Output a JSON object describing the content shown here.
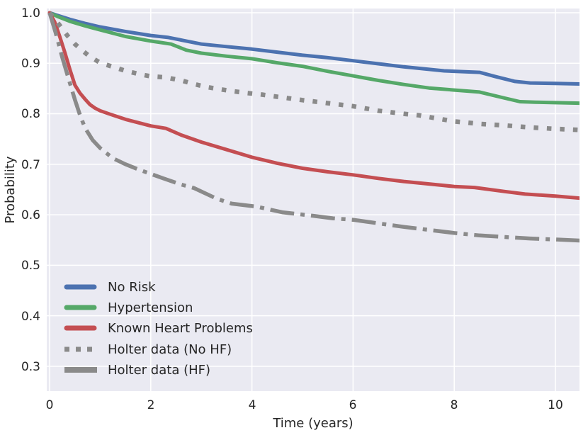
{
  "chart_data": {
    "type": "line",
    "xlabel": "Time (years)",
    "ylabel": "Probability",
    "xlim": [
      0,
      10.5
    ],
    "ylim": [
      0.25,
      1.01
    ],
    "xticks": [
      0,
      2,
      4,
      6,
      8,
      10
    ],
    "yticks": [
      1.0,
      0.9,
      0.8,
      0.7,
      0.6,
      0.5,
      0.4,
      0.3
    ],
    "xtick_labels": [
      "0",
      "2",
      "4",
      "6",
      "8",
      "10"
    ],
    "ytick_labels": [
      "1.0",
      "0.9",
      "0.8",
      "0.7",
      "0.6",
      "0.5",
      "0.4",
      "0.3"
    ],
    "grid": true,
    "plot_background": "#eaeaf2",
    "grid_color": "#ffffff",
    "legend_position": "lower left",
    "series": [
      {
        "name": "No Risk",
        "color": "#4c72b0",
        "line_style": "solid",
        "points": [
          [
            0,
            1.0
          ],
          [
            0.15,
            0.995
          ],
          [
            0.4,
            0.987
          ],
          [
            0.7,
            0.979
          ],
          [
            1.0,
            0.972
          ],
          [
            1.5,
            0.963
          ],
          [
            2.0,
            0.955
          ],
          [
            2.35,
            0.951
          ],
          [
            2.7,
            0.944
          ],
          [
            3.0,
            0.938
          ],
          [
            3.5,
            0.933
          ],
          [
            4.0,
            0.928
          ],
          [
            4.5,
            0.922
          ],
          [
            5.0,
            0.916
          ],
          [
            5.5,
            0.911
          ],
          [
            6.0,
            0.905
          ],
          [
            6.5,
            0.899
          ],
          [
            7.0,
            0.893
          ],
          [
            7.4,
            0.889
          ],
          [
            7.8,
            0.885
          ],
          [
            8.5,
            0.882
          ],
          [
            8.8,
            0.874
          ],
          [
            9.2,
            0.864
          ],
          [
            9.5,
            0.861
          ],
          [
            10.0,
            0.86
          ],
          [
            10.48,
            0.859
          ]
        ]
      },
      {
        "name": "Hypertension",
        "color": "#55a868",
        "line_style": "solid",
        "points": [
          [
            0,
            1.0
          ],
          [
            0.15,
            0.993
          ],
          [
            0.4,
            0.983
          ],
          [
            0.7,
            0.974
          ],
          [
            1.0,
            0.966
          ],
          [
            1.5,
            0.953
          ],
          [
            2.0,
            0.944
          ],
          [
            2.4,
            0.938
          ],
          [
            2.7,
            0.926
          ],
          [
            3.0,
            0.92
          ],
          [
            3.5,
            0.914
          ],
          [
            4.0,
            0.909
          ],
          [
            4.5,
            0.901
          ],
          [
            5.0,
            0.894
          ],
          [
            5.5,
            0.884
          ],
          [
            6.0,
            0.875
          ],
          [
            6.5,
            0.866
          ],
          [
            7.0,
            0.858
          ],
          [
            7.5,
            0.851
          ],
          [
            8.0,
            0.847
          ],
          [
            8.5,
            0.843
          ],
          [
            9.0,
            0.831
          ],
          [
            9.3,
            0.824
          ],
          [
            9.6,
            0.823
          ],
          [
            10.0,
            0.822
          ],
          [
            10.48,
            0.821
          ]
        ]
      },
      {
        "name": "Known Heart Problems",
        "color": "#c44e52",
        "line_style": "solid",
        "points": [
          [
            0,
            1.0
          ],
          [
            0.1,
            0.982
          ],
          [
            0.2,
            0.953
          ],
          [
            0.3,
            0.922
          ],
          [
            0.4,
            0.888
          ],
          [
            0.5,
            0.857
          ],
          [
            0.6,
            0.841
          ],
          [
            0.7,
            0.829
          ],
          [
            0.8,
            0.818
          ],
          [
            0.9,
            0.811
          ],
          [
            1.0,
            0.806
          ],
          [
            1.2,
            0.799
          ],
          [
            1.5,
            0.789
          ],
          [
            2.0,
            0.776
          ],
          [
            2.3,
            0.771
          ],
          [
            2.6,
            0.758
          ],
          [
            3.0,
            0.744
          ],
          [
            3.5,
            0.729
          ],
          [
            4.0,
            0.714
          ],
          [
            4.5,
            0.702
          ],
          [
            5.0,
            0.692
          ],
          [
            5.5,
            0.685
          ],
          [
            6.0,
            0.679
          ],
          [
            6.5,
            0.672
          ],
          [
            7.0,
            0.666
          ],
          [
            7.5,
            0.661
          ],
          [
            8.0,
            0.656
          ],
          [
            8.4,
            0.654
          ],
          [
            9.0,
            0.646
          ],
          [
            9.4,
            0.641
          ],
          [
            10.0,
            0.637
          ],
          [
            10.48,
            0.633
          ]
        ]
      },
      {
        "name": "Holter data (No HF)",
        "color": "#8a8a8a",
        "line_style": "dotted",
        "points": [
          [
            0,
            1.0
          ],
          [
            0.2,
            0.975
          ],
          [
            0.35,
            0.955
          ],
          [
            0.5,
            0.938
          ],
          [
            0.65,
            0.925
          ],
          [
            0.8,
            0.913
          ],
          [
            1.0,
            0.901
          ],
          [
            1.25,
            0.893
          ],
          [
            1.5,
            0.885
          ],
          [
            1.75,
            0.879
          ],
          [
            2.0,
            0.874
          ],
          [
            2.3,
            0.872
          ],
          [
            2.6,
            0.866
          ],
          [
            2.85,
            0.859
          ],
          [
            3.1,
            0.853
          ],
          [
            3.4,
            0.848
          ],
          [
            3.6,
            0.845
          ],
          [
            3.9,
            0.841
          ],
          [
            4.2,
            0.838
          ],
          [
            4.4,
            0.835
          ],
          [
            5.0,
            0.827
          ],
          [
            5.5,
            0.821
          ],
          [
            6.0,
            0.815
          ],
          [
            6.5,
            0.806
          ],
          [
            7.0,
            0.8
          ],
          [
            7.3,
            0.797
          ],
          [
            8.0,
            0.785
          ],
          [
            8.5,
            0.78
          ],
          [
            9.0,
            0.777
          ],
          [
            9.5,
            0.773
          ],
          [
            10.0,
            0.77
          ],
          [
            10.48,
            0.768
          ]
        ]
      },
      {
        "name": "Holter data (HF)",
        "color": "#8a8a8a",
        "line_style": "dashdot",
        "points": [
          [
            0,
            1.0
          ],
          [
            0.12,
            0.96
          ],
          [
            0.25,
            0.912
          ],
          [
            0.38,
            0.868
          ],
          [
            0.5,
            0.828
          ],
          [
            0.6,
            0.798
          ],
          [
            0.7,
            0.772
          ],
          [
            0.85,
            0.748
          ],
          [
            1.0,
            0.732
          ],
          [
            1.25,
            0.712
          ],
          [
            1.5,
            0.7
          ],
          [
            1.75,
            0.69
          ],
          [
            2.0,
            0.681
          ],
          [
            2.25,
            0.672
          ],
          [
            2.6,
            0.66
          ],
          [
            2.85,
            0.653
          ],
          [
            3.3,
            0.632
          ],
          [
            3.6,
            0.622
          ],
          [
            4.1,
            0.616
          ],
          [
            4.6,
            0.605
          ],
          [
            5.2,
            0.598
          ],
          [
            5.6,
            0.593
          ],
          [
            6.0,
            0.59
          ],
          [
            6.5,
            0.583
          ],
          [
            7.0,
            0.576
          ],
          [
            7.5,
            0.57
          ],
          [
            8.0,
            0.564
          ],
          [
            8.5,
            0.559
          ],
          [
            9.0,
            0.556
          ],
          [
            9.5,
            0.553
          ],
          [
            10.0,
            0.551
          ],
          [
            10.48,
            0.549
          ]
        ]
      }
    ]
  }
}
